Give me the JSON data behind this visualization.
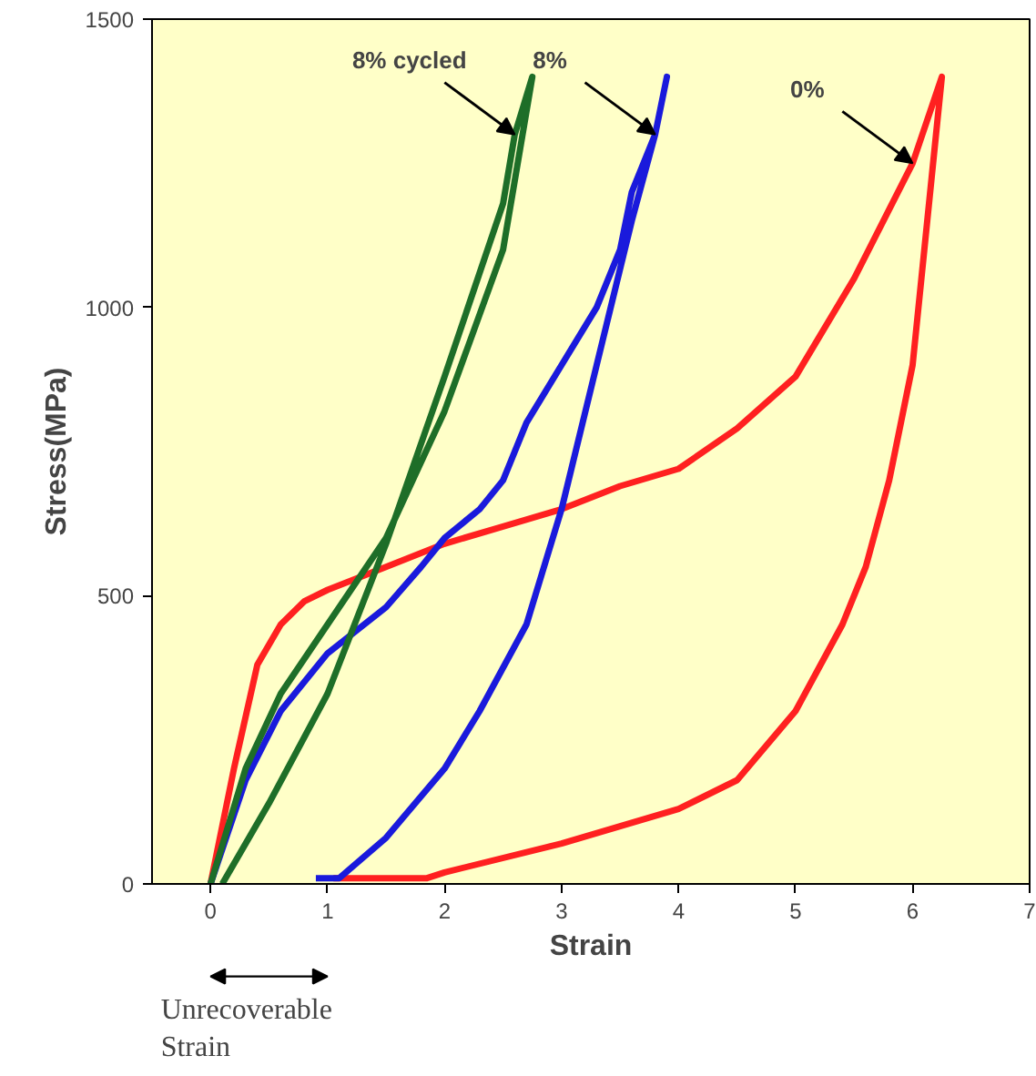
{
  "chart_data": {
    "type": "line",
    "xlabel": "Strain",
    "ylabel": "Stress(MPa)",
    "xlim": [
      -0.5,
      7
    ],
    "ylim": [
      0,
      1500
    ],
    "xticks": [
      0,
      1,
      2,
      3,
      4,
      5,
      6,
      7
    ],
    "yticks": [
      0,
      500,
      1000,
      1500
    ],
    "grid": false,
    "marker": "none",
    "line_style": "solid",
    "series": [
      {
        "color": "#ff2020",
        "x": [
          0,
          0.2,
          0.4,
          0.6,
          0.8,
          1.0,
          1.5,
          2.0,
          2.5,
          3.0,
          3.5,
          4.0,
          4.5,
          5.0,
          5.5,
          6.0,
          6.25,
          6.1,
          6.0,
          5.8,
          5.6,
          5.4,
          5.0,
          4.5,
          4.0,
          3.0,
          2.0,
          1.85,
          1.05
        ],
        "values": [
          0,
          200,
          380,
          450,
          490,
          510,
          550,
          590,
          620,
          650,
          690,
          720,
          790,
          880,
          1050,
          1250,
          1400,
          1100,
          900,
          700,
          550,
          450,
          300,
          180,
          130,
          70,
          20,
          10,
          10
        ]
      },
      {
        "color": "#1a1adc",
        "x": [
          0,
          0.3,
          0.6,
          1.0,
          1.5,
          1.8,
          2.0,
          2.3,
          2.5,
          2.7,
          3.0,
          3.3,
          3.5,
          3.6,
          3.8,
          3.9,
          3.8,
          3.6,
          3.3,
          3.0,
          2.7,
          2.3,
          2.0,
          1.5,
          1.1,
          0.9
        ],
        "values": [
          0,
          180,
          300,
          400,
          480,
          550,
          600,
          650,
          700,
          800,
          900,
          1000,
          1100,
          1200,
          1300,
          1400,
          1300,
          1150,
          900,
          650,
          450,
          300,
          200,
          80,
          10,
          10
        ]
      },
      {
        "color": "#1e6e28",
        "x": [
          0,
          0.3,
          0.6,
          1.0,
          1.5,
          2.0,
          2.5,
          2.75,
          2.6,
          2.5,
          2.0,
          1.5,
          1.0,
          0.5,
          0.1
        ],
        "values": [
          0,
          200,
          330,
          450,
          600,
          820,
          1100,
          1400,
          1300,
          1180,
          880,
          590,
          330,
          140,
          0
        ]
      }
    ],
    "annotations": [
      {
        "text": "8% cycled",
        "x": 2.6,
        "y": 1300
      },
      {
        "text": "8%",
        "x": 3.8,
        "y": 1300
      },
      {
        "text": "0%",
        "x": 6.0,
        "y": 1250
      },
      "Unrecoverable Strain"
    ]
  }
}
